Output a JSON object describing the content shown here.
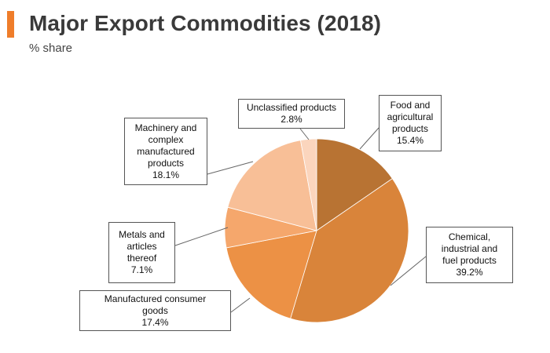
{
  "header": {
    "title": "Major Export Commodities (2018)",
    "subtitle": "% share"
  },
  "chart_data": {
    "type": "pie",
    "title": "Major Export Commodities (2018)",
    "subtitle": "% share",
    "start_angle_deg": 0,
    "direction": "clockwise",
    "slices": [
      {
        "label": "Food and agricultural products",
        "lines": [
          "Food and",
          "agricultural",
          "products"
        ],
        "value": 15.4,
        "value_label": "15.4%",
        "color": "#b87333"
      },
      {
        "label": "Chemical, industrial and fuel products",
        "lines": [
          "Chemical,",
          "industrial and",
          "fuel products"
        ],
        "value": 39.2,
        "value_label": "39.2%",
        "color": "#d9843a"
      },
      {
        "label": "Manufactured consumer goods",
        "lines": [
          "Manufactured consumer",
          "goods"
        ],
        "value": 17.4,
        "value_label": "17.4%",
        "color": "#ec9145"
      },
      {
        "label": "Metals and articles thereof",
        "lines": [
          "Metals and",
          "articles",
          "thereof"
        ],
        "value": 7.1,
        "value_label": "7.1%",
        "color": "#f5a76c"
      },
      {
        "label": "Machinery and complex manufactured products",
        "lines": [
          "Machinery and",
          "complex",
          "manufactured",
          "products"
        ],
        "value": 18.1,
        "value_label": "18.1%",
        "color": "#f8bf97"
      },
      {
        "label": "Unclassified products",
        "lines": [
          "Unclassified products"
        ],
        "value": 2.8,
        "value_label": "2.8%",
        "color": "#fbd5bd"
      }
    ]
  }
}
